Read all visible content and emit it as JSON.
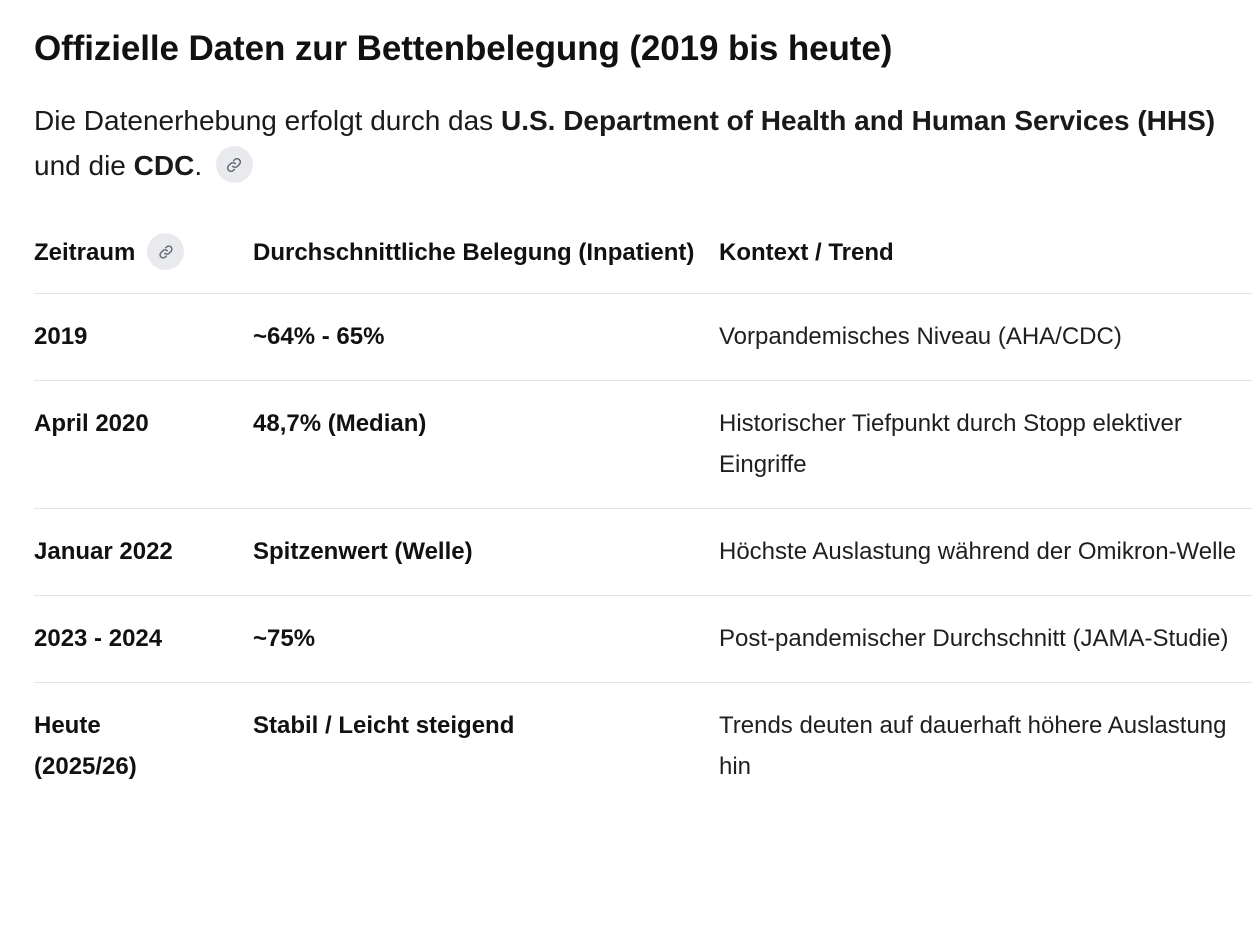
{
  "heading": "Offizielle Daten zur Bettenbelegung (2019 bis heute)",
  "intro": {
    "prefix": "Die Datenerhebung erfolgt durch das ",
    "org1": "U.S. Department of Health and Human Services (HHS)",
    "middle": " und die ",
    "org2": "CDC",
    "suffix": ".",
    "link_icon": "link-icon"
  },
  "table": {
    "headers": {
      "col1": "Zeitraum",
      "col2": "Durchschnittliche Belegung (Inpatient)",
      "col3": "Kontext / Trend"
    },
    "rows": [
      {
        "period": "2019",
        "occupancy": "~64% - 65%",
        "context": "Vorpandemisches Niveau (AHA/CDC)"
      },
      {
        "period": "April 2020",
        "occupancy": "48,7% (Median)",
        "context": "Historischer Tiefpunkt durch Stopp elektiver Eingriffe"
      },
      {
        "period": "Januar 2022",
        "occupancy": "Spitzenwert (Welle)",
        "context": "Höchste Auslastung während der Omikron-Welle"
      },
      {
        "period": "2023 - 2024",
        "occupancy": "~75%",
        "context": "Post-pandemischer Durchschnitt (JAMA-Studie)"
      },
      {
        "period": "Heute (2025/26)",
        "occupancy": "Stabil / Leicht steigend",
        "context": "Trends deuten auf dauerhaft höhere Auslastung hin"
      }
    ]
  }
}
